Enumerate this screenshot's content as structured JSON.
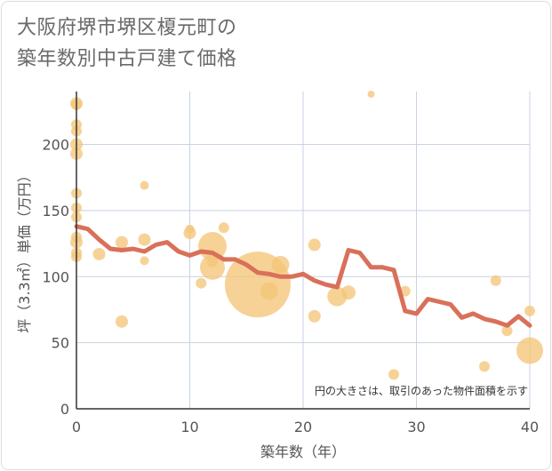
{
  "chart_data": {
    "type": "scatter",
    "title_lines": [
      "大阪府堺市堺区榎元町の",
      "築年数別中古戸建て価格"
    ],
    "xlabel": "築年数（年）",
    "ylabel": "坪（3.3㎡）単価（万円）",
    "xlim": [
      0,
      40
    ],
    "ylim": [
      0,
      240
    ],
    "xticks": [
      0,
      10,
      20,
      30,
      40
    ],
    "yticks": [
      0,
      50,
      100,
      150,
      200
    ],
    "note": "円の大きさは、取引のあった物件面積を示す",
    "colors": {
      "bubble": "#f5c57a",
      "line": "#d9705a",
      "grid": "#c8d2e0",
      "axis": "#333333"
    },
    "bubbles": [
      {
        "x": 0,
        "y": 231,
        "s": 7
      },
      {
        "x": 0,
        "y": 230,
        "s": 6
      },
      {
        "x": 0,
        "y": 215,
        "s": 6
      },
      {
        "x": 0,
        "y": 210,
        "s": 6
      },
      {
        "x": 0,
        "y": 200,
        "s": 7
      },
      {
        "x": 0,
        "y": 193,
        "s": 7
      },
      {
        "x": 0,
        "y": 163,
        "s": 6
      },
      {
        "x": 0,
        "y": 152,
        "s": 6
      },
      {
        "x": 0,
        "y": 145,
        "s": 6
      },
      {
        "x": 0,
        "y": 130,
        "s": 6
      },
      {
        "x": 0,
        "y": 126,
        "s": 7
      },
      {
        "x": 0,
        "y": 118,
        "s": 6
      },
      {
        "x": 0,
        "y": 115,
        "s": 6
      },
      {
        "x": 2,
        "y": 117,
        "s": 7
      },
      {
        "x": 4,
        "y": 126,
        "s": 7
      },
      {
        "x": 4,
        "y": 66,
        "s": 7
      },
      {
        "x": 6,
        "y": 169,
        "s": 5
      },
      {
        "x": 6,
        "y": 128,
        "s": 7
      },
      {
        "x": 6,
        "y": 112,
        "s": 5
      },
      {
        "x": 10,
        "y": 136,
        "s": 5
      },
      {
        "x": 10,
        "y": 133,
        "s": 7
      },
      {
        "x": 11,
        "y": 95,
        "s": 6
      },
      {
        "x": 12,
        "y": 123,
        "s": 16
      },
      {
        "x": 12,
        "y": 107,
        "s": 14
      },
      {
        "x": 12,
        "y": 111,
        "s": 6
      },
      {
        "x": 13,
        "y": 137,
        "s": 6
      },
      {
        "x": 16,
        "y": 94,
        "s": 37
      },
      {
        "x": 17,
        "y": 89,
        "s": 10
      },
      {
        "x": 18,
        "y": 109,
        "s": 10
      },
      {
        "x": 21,
        "y": 124,
        "s": 7
      },
      {
        "x": 21,
        "y": 70,
        "s": 7
      },
      {
        "x": 23,
        "y": 85,
        "s": 11
      },
      {
        "x": 24,
        "y": 88,
        "s": 8
      },
      {
        "x": 26,
        "y": 238,
        "s": 4
      },
      {
        "x": 28,
        "y": 26,
        "s": 6
      },
      {
        "x": 29,
        "y": 89,
        "s": 6
      },
      {
        "x": 36,
        "y": 32,
        "s": 6
      },
      {
        "x": 37,
        "y": 97,
        "s": 6
      },
      {
        "x": 38,
        "y": 59,
        "s": 6
      },
      {
        "x": 40,
        "y": 74,
        "s": 6
      },
      {
        "x": 40,
        "y": 44,
        "s": 15
      }
    ],
    "line": {
      "x": [
        0,
        1,
        2,
        3,
        4,
        5,
        6,
        7,
        8,
        9,
        10,
        11,
        12,
        13,
        14,
        15,
        16,
        17,
        18,
        19,
        20,
        21,
        22,
        23,
        24,
        25,
        26,
        27,
        28,
        29,
        30,
        31,
        32,
        33,
        34,
        35,
        36,
        37,
        38,
        39,
        40
      ],
      "y": [
        138,
        136,
        128,
        121,
        120,
        121,
        119,
        124,
        126,
        119,
        116,
        119,
        118,
        113,
        113,
        109,
        103,
        102,
        100,
        100,
        102,
        97,
        94,
        92,
        120,
        118,
        107,
        107,
        105,
        74,
        72,
        83,
        81,
        79,
        69,
        72,
        68,
        66,
        63,
        70,
        63
      ]
    }
  }
}
